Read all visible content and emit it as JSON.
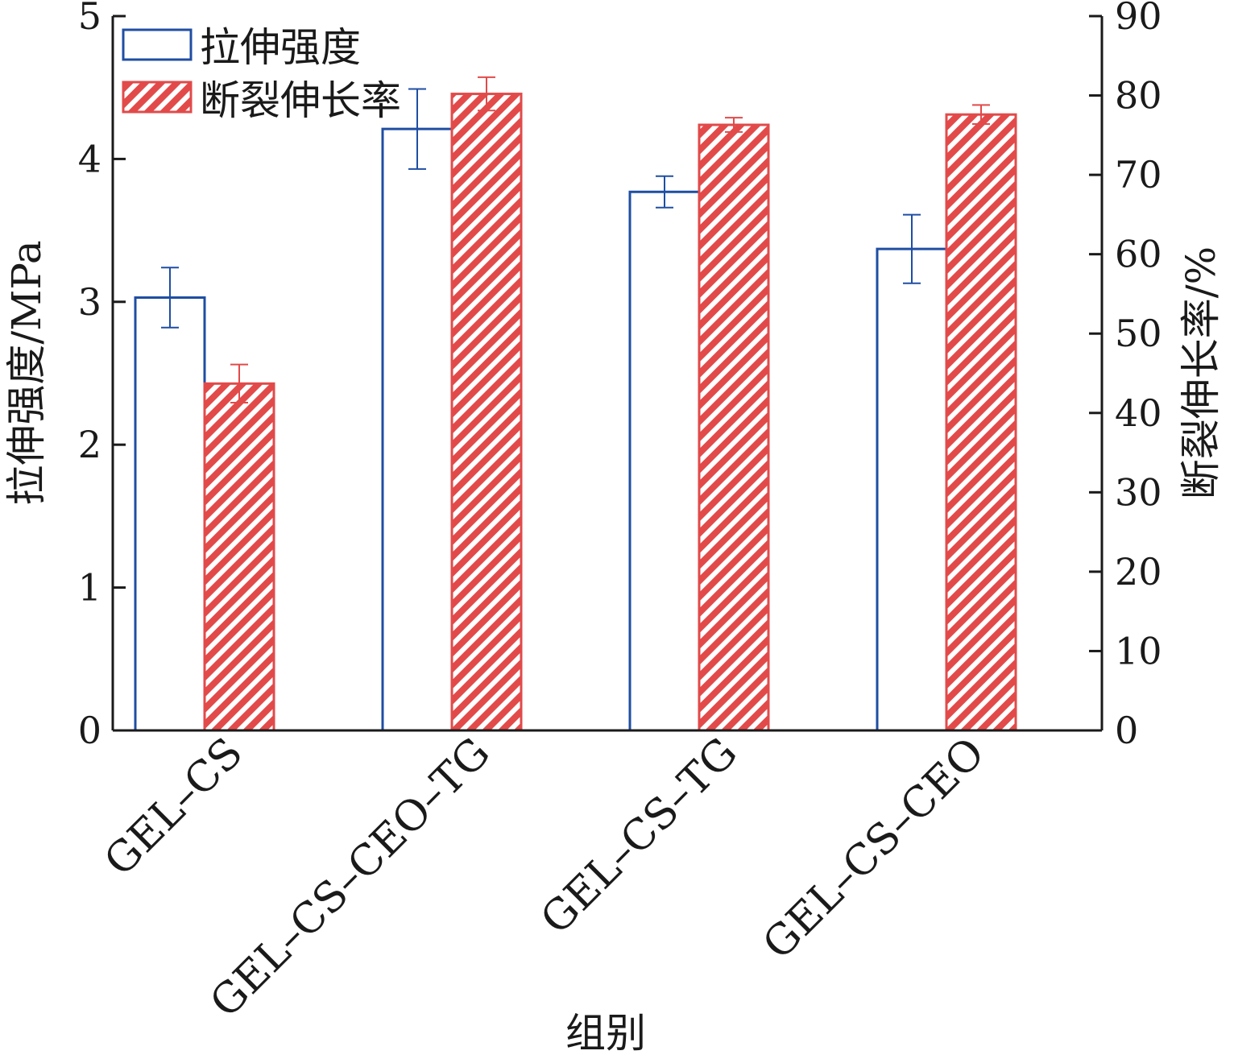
{
  "chart_data": {
    "type": "bar",
    "categories": [
      "GEL–CS",
      "GEL–CS–CEO–TG",
      "GEL–CS–TG",
      "GEL–CS–CEO"
    ],
    "series": [
      {
        "name": "拉伸强度",
        "axis": "left",
        "values": [
          3.03,
          4.21,
          3.77,
          3.37
        ],
        "errors": [
          0.21,
          0.28,
          0.11,
          0.24
        ],
        "color": "#1f4ea3",
        "fill": "none"
      },
      {
        "name": "断裂伸长率",
        "axis": "right",
        "values": [
          43.7,
          80.2,
          76.3,
          77.6
        ],
        "errors": [
          2.4,
          2.1,
          0.9,
          1.2
        ],
        "color": "#e24a4a",
        "fill": "hatched"
      }
    ],
    "xlabel": "组别",
    "ylabel_left": "拉伸强度/MPa",
    "ylabel_right": "断裂伸长率/%",
    "ylim_left": [
      0,
      5
    ],
    "ylim_right": [
      0,
      90
    ],
    "yticks_left": [
      0,
      1,
      2,
      3,
      4,
      5
    ],
    "yticks_right": [
      0,
      10,
      20,
      30,
      40,
      50,
      60,
      70,
      80,
      90
    ],
    "legend": {
      "position": "top-left",
      "entries": [
        "拉伸强度",
        "断裂伸长率"
      ]
    },
    "grid": false
  }
}
